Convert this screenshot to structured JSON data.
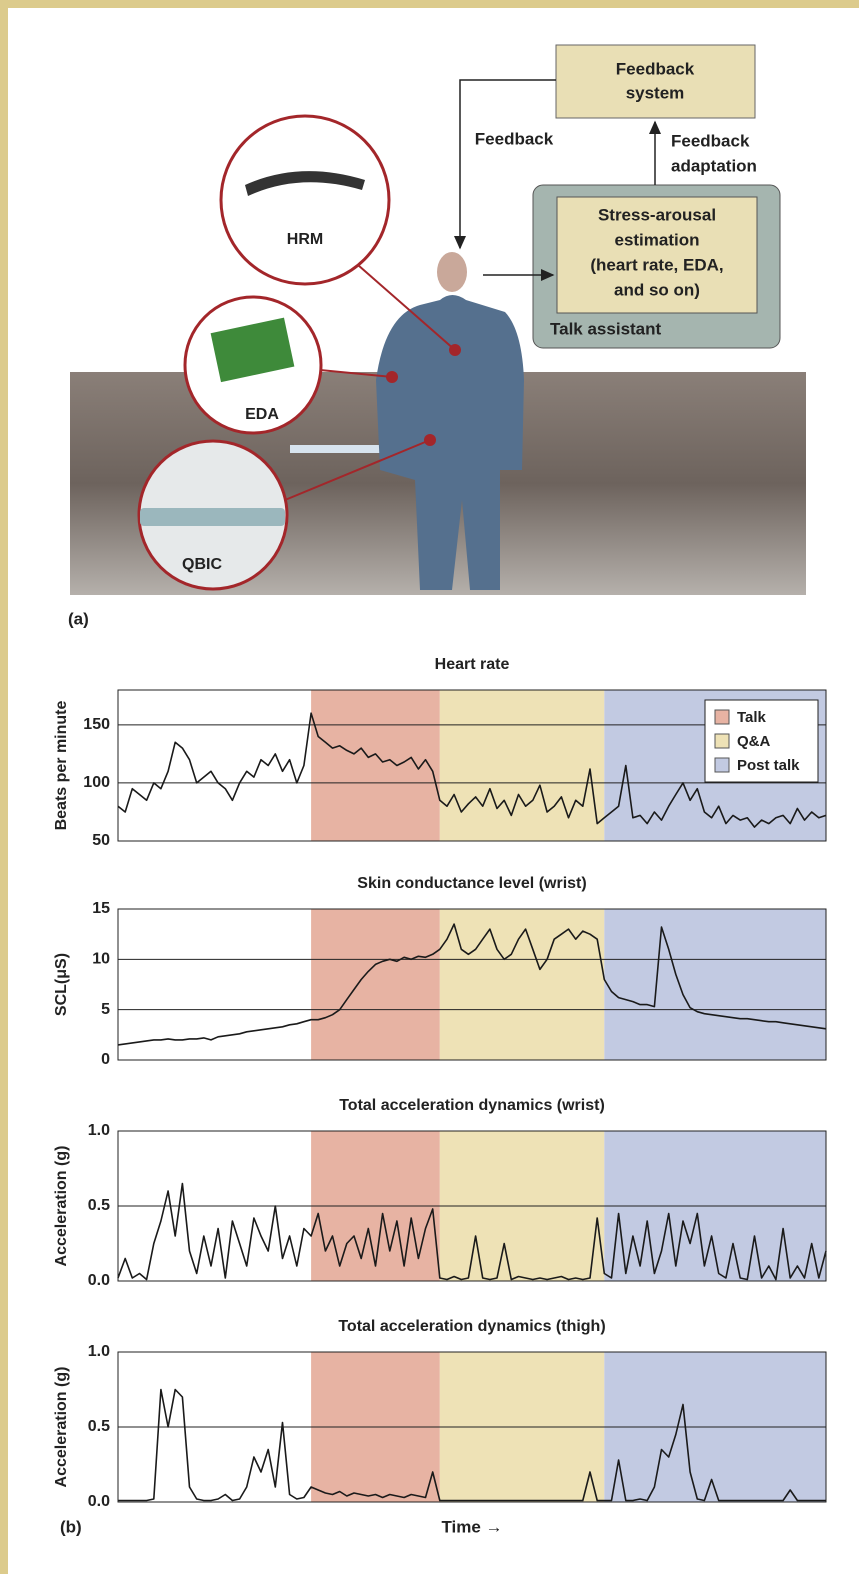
{
  "figure": {
    "panel_a_label": "(a)",
    "panel_b_label": "(b)",
    "diagram": {
      "feedback_system": [
        "Feedback",
        "system"
      ],
      "feedback": "Feedback",
      "feedback_adaptation": [
        "Feedback",
        "adaptation"
      ],
      "estimation": [
        "Stress-arousal",
        "estimation",
        "(heart rate, EDA,",
        "and so on)"
      ],
      "talk_assistant": "Talk assistant",
      "sensors": [
        "HRM",
        "EDA",
        "QBIC"
      ]
    }
  },
  "chart_data": [
    {
      "type": "line",
      "title": "Heart rate",
      "y_label": "Beats per minute",
      "ylim": [
        50,
        180
      ],
      "yticks": [
        50,
        100,
        150
      ],
      "grid": true,
      "legend": "upper right",
      "phases": [
        {
          "name": "Talk",
          "color": "#e7b3a3",
          "from": 27,
          "to": 45
        },
        {
          "name": "Q&A",
          "color": "#eee2b6",
          "from": 45,
          "to": 68
        },
        {
          "name": "Post talk",
          "color": "#c2cae2",
          "from": 68,
          "to": 99
        }
      ],
      "series": [
        {
          "color": "#1a1a1a",
          "values": [
            80,
            75,
            95,
            90,
            85,
            100,
            95,
            110,
            135,
            130,
            120,
            100,
            105,
            110,
            100,
            95,
            85,
            100,
            110,
            105,
            120,
            115,
            125,
            110,
            120,
            100,
            115,
            160,
            140,
            135,
            130,
            132,
            128,
            125,
            130,
            122,
            125,
            118,
            120,
            115,
            118,
            122,
            112,
            120,
            110,
            85,
            80,
            90,
            75,
            82,
            88,
            80,
            95,
            78,
            85,
            72,
            90,
            80,
            85,
            98,
            75,
            80,
            88,
            70,
            85,
            80,
            112,
            65,
            70,
            75,
            80,
            115,
            70,
            72,
            65,
            75,
            68,
            80,
            90,
            100,
            85,
            95,
            75,
            70,
            80,
            65,
            72,
            68,
            70,
            62,
            68,
            65,
            70,
            72,
            65,
            78,
            68,
            75,
            70,
            72
          ]
        }
      ]
    },
    {
      "type": "line",
      "title": "Skin conductance level (wrist)",
      "y_label": "SCL(μS)",
      "ylim": [
        0,
        15
      ],
      "yticks": [
        0,
        5,
        10,
        15
      ],
      "grid": true,
      "series": [
        {
          "color": "#1a1a1a",
          "values": [
            1.5,
            1.6,
            1.7,
            1.8,
            1.9,
            2,
            2,
            2.1,
            2,
            2,
            2.1,
            2.1,
            2.2,
            2,
            2.3,
            2.4,
            2.5,
            2.6,
            2.8,
            2.9,
            3,
            3.1,
            3.2,
            3.3,
            3.5,
            3.6,
            3.8,
            4,
            4,
            4.2,
            4.5,
            5,
            6,
            7,
            8,
            8.8,
            9.5,
            9.8,
            10,
            9.8,
            10.2,
            10,
            10.3,
            10.2,
            10.5,
            11,
            12,
            13.5,
            11,
            10.5,
            11,
            12,
            13,
            11,
            10,
            10.5,
            12,
            13,
            11,
            9,
            10,
            12,
            12.5,
            13,
            12,
            12.8,
            12.5,
            12,
            8,
            6.8,
            6.2,
            6,
            5.8,
            5.5,
            5.5,
            5.3,
            13.2,
            11,
            8.5,
            6.5,
            5.2,
            4.8,
            4.6,
            4.5,
            4.4,
            4.3,
            4.2,
            4.1,
            4.1,
            4,
            3.9,
            3.8,
            3.8,
            3.7,
            3.6,
            3.5,
            3.4,
            3.3,
            3.2,
            3.1
          ]
        }
      ]
    },
    {
      "type": "line",
      "title": "Total acceleration dynamics (wrist)",
      "y_label": "Acceleration (g)",
      "ylim": [
        0,
        1
      ],
      "yticks": [
        {
          "value": 0,
          "label": "0.0"
        },
        {
          "value": 0.5,
          "label": "0.5"
        },
        {
          "value": 1,
          "label": "1.0"
        }
      ],
      "grid": true,
      "series": [
        {
          "color": "#1a1a1a",
          "values": [
            0.02,
            0.15,
            0.02,
            0.05,
            0.01,
            0.25,
            0.4,
            0.6,
            0.3,
            0.65,
            0.2,
            0.05,
            0.3,
            0.1,
            0.35,
            0.02,
            0.4,
            0.25,
            0.1,
            0.42,
            0.3,
            0.2,
            0.5,
            0.15,
            0.3,
            0.1,
            0.35,
            0.3,
            0.45,
            0.2,
            0.3,
            0.1,
            0.25,
            0.3,
            0.15,
            0.35,
            0.1,
            0.45,
            0.2,
            0.4,
            0.1,
            0.42,
            0.15,
            0.35,
            0.48,
            0.02,
            0.01,
            0.03,
            0.01,
            0.02,
            0.3,
            0.02,
            0.01,
            0.02,
            0.25,
            0.01,
            0.03,
            0.02,
            0.01,
            0.02,
            0.01,
            0.02,
            0.03,
            0.01,
            0.02,
            0.01,
            0.02,
            0.42,
            0.05,
            0.02,
            0.45,
            0.05,
            0.3,
            0.1,
            0.4,
            0.05,
            0.2,
            0.45,
            0.1,
            0.4,
            0.25,
            0.45,
            0.1,
            0.3,
            0.05,
            0.02,
            0.25,
            0.02,
            0.01,
            0.3,
            0.02,
            0.1,
            0.01,
            0.35,
            0.02,
            0.1,
            0.02,
            0.25,
            0.02,
            0.2
          ]
        }
      ]
    },
    {
      "type": "line",
      "title": "Total acceleration dynamics (thigh)",
      "y_label": "Acceleration (g)",
      "x_label": "Time →",
      "ylim": [
        0,
        1
      ],
      "yticks": [
        {
          "value": 0,
          "label": "0.0"
        },
        {
          "value": 0.5,
          "label": "0.5"
        },
        {
          "value": 1,
          "label": "1.0"
        }
      ],
      "grid": true,
      "series": [
        {
          "color": "#1a1a1a",
          "values": [
            0.01,
            0.01,
            0.01,
            0.01,
            0.01,
            0.02,
            0.75,
            0.5,
            0.75,
            0.7,
            0.1,
            0.02,
            0.01,
            0.01,
            0.02,
            0.05,
            0.01,
            0.02,
            0.1,
            0.3,
            0.2,
            0.35,
            0.1,
            0.53,
            0.05,
            0.02,
            0.03,
            0.1,
            0.08,
            0.06,
            0.05,
            0.07,
            0.04,
            0.06,
            0.05,
            0.04,
            0.05,
            0.03,
            0.05,
            0.04,
            0.03,
            0.05,
            0.04,
            0.03,
            0.2,
            0.01,
            0.01,
            0.01,
            0.01,
            0.01,
            0.01,
            0.01,
            0.01,
            0.01,
            0.01,
            0.01,
            0.01,
            0.01,
            0.01,
            0.01,
            0.01,
            0.01,
            0.01,
            0.01,
            0.01,
            0.01,
            0.2,
            0.01,
            0.01,
            0.01,
            0.28,
            0.01,
            0.01,
            0.02,
            0.01,
            0.1,
            0.35,
            0.3,
            0.45,
            0.65,
            0.2,
            0.02,
            0.01,
            0.15,
            0.01,
            0.01,
            0.01,
            0.01,
            0.01,
            0.01,
            0.01,
            0.01,
            0.01,
            0.01,
            0.08,
            0.01,
            0.01,
            0.01,
            0.01,
            0.01
          ]
        }
      ]
    }
  ]
}
